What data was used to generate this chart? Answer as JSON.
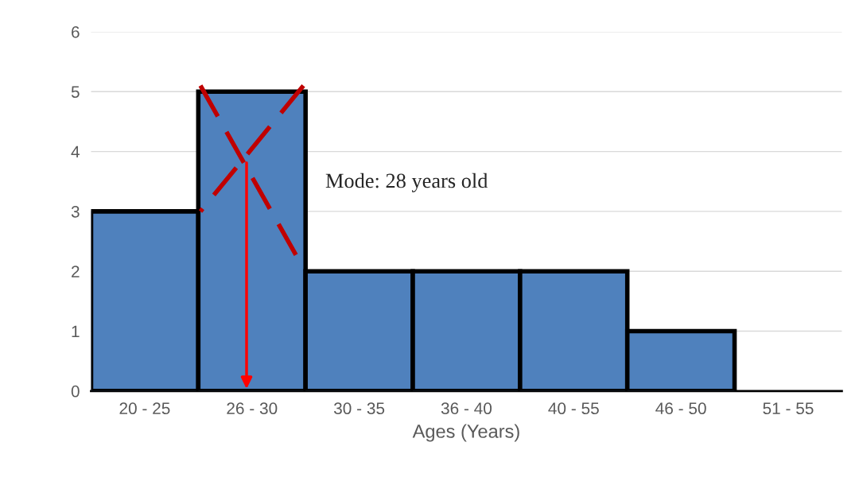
{
  "chart_data": {
    "type": "bar",
    "xlabel": "Ages (Years)",
    "categories": [
      "20 - 25",
      "26 - 30",
      "30 - 35",
      "36 - 40",
      "40 - 55",
      "46 - 50",
      "51 - 55"
    ],
    "values": [
      3,
      5,
      2,
      2,
      2,
      1,
      0
    ],
    "color": "#4f81bd",
    "ylim": [
      0,
      6
    ],
    "yticks": [
      0,
      1,
      2,
      3,
      4,
      5,
      6
    ],
    "grid": "y",
    "annotations": [
      "Mode: 28 years old"
    ]
  }
}
